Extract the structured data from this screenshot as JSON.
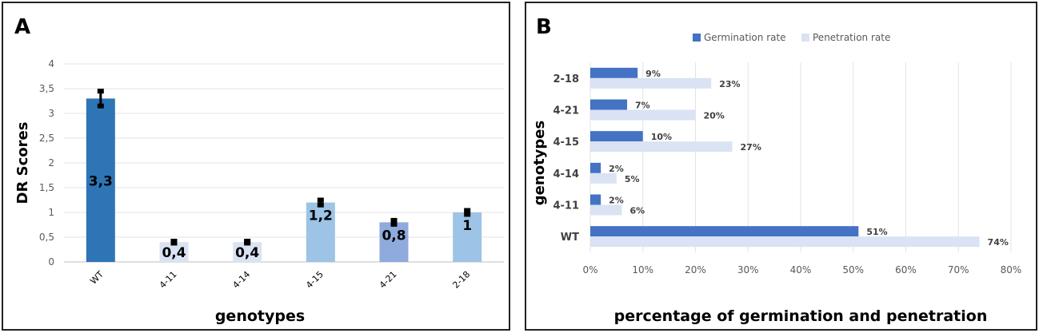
{
  "chart_data": [
    {
      "panel_label": "A",
      "type": "bar",
      "title": "",
      "xlabel": "genotypes",
      "ylabel": "DR Scores",
      "categories": [
        "WT",
        "4-11",
        "4-14",
        "4-15",
        "4-21",
        "2-18"
      ],
      "values": [
        3.3,
        0.4,
        0.4,
        1.2,
        0.8,
        1.0
      ],
      "value_labels": [
        "3,3",
        "0,4",
        "0,4",
        "1,2",
        "0,8",
        "1"
      ],
      "errors": [
        0.15,
        0.02,
        0.02,
        0.05,
        0.04,
        0.04
      ],
      "bar_colors": [
        "#2e75b6",
        "#dae3f3",
        "#dae3f3",
        "#9dc3e6",
        "#8faadc",
        "#9dc3e6"
      ],
      "ylim": [
        0,
        4
      ],
      "yticks": [
        0,
        0.5,
        1,
        1.5,
        2,
        2.5,
        3,
        3.5,
        4
      ],
      "ytick_labels": [
        "0",
        "0,5",
        "1",
        "1,5",
        "2",
        "2,5",
        "3",
        "3,5",
        "4"
      ],
      "grid": true
    },
    {
      "panel_label": "B",
      "type": "bar",
      "orientation": "horizontal",
      "title": "",
      "xlabel": "percentage of germination and penetration",
      "ylabel": "genotypes",
      "categories": [
        "WT",
        "4-11",
        "4-14",
        "4-15",
        "4-21",
        "2-18"
      ],
      "series": [
        {
          "name": "Germination rate",
          "values": [
            51,
            2,
            2,
            10,
            7,
            9
          ],
          "labels": [
            "51%",
            "2%",
            "2%",
            "10%",
            "7%",
            "9%"
          ],
          "color": "#4472c4"
        },
        {
          "name": "Penetration rate",
          "values": [
            74,
            6,
            5,
            27,
            20,
            23
          ],
          "labels": [
            "74%",
            "6%",
            "5%",
            "27%",
            "20%",
            "23%"
          ],
          "color": "#dae3f3"
        }
      ],
      "xlim": [
        0,
        80
      ],
      "xticks": [
        0,
        10,
        20,
        30,
        40,
        50,
        60,
        70,
        80
      ],
      "xtick_labels": [
        "0%",
        "10%",
        "20%",
        "30%",
        "40%",
        "50%",
        "60%",
        "70%",
        "80%"
      ],
      "legend": "top",
      "grid": true
    }
  ]
}
